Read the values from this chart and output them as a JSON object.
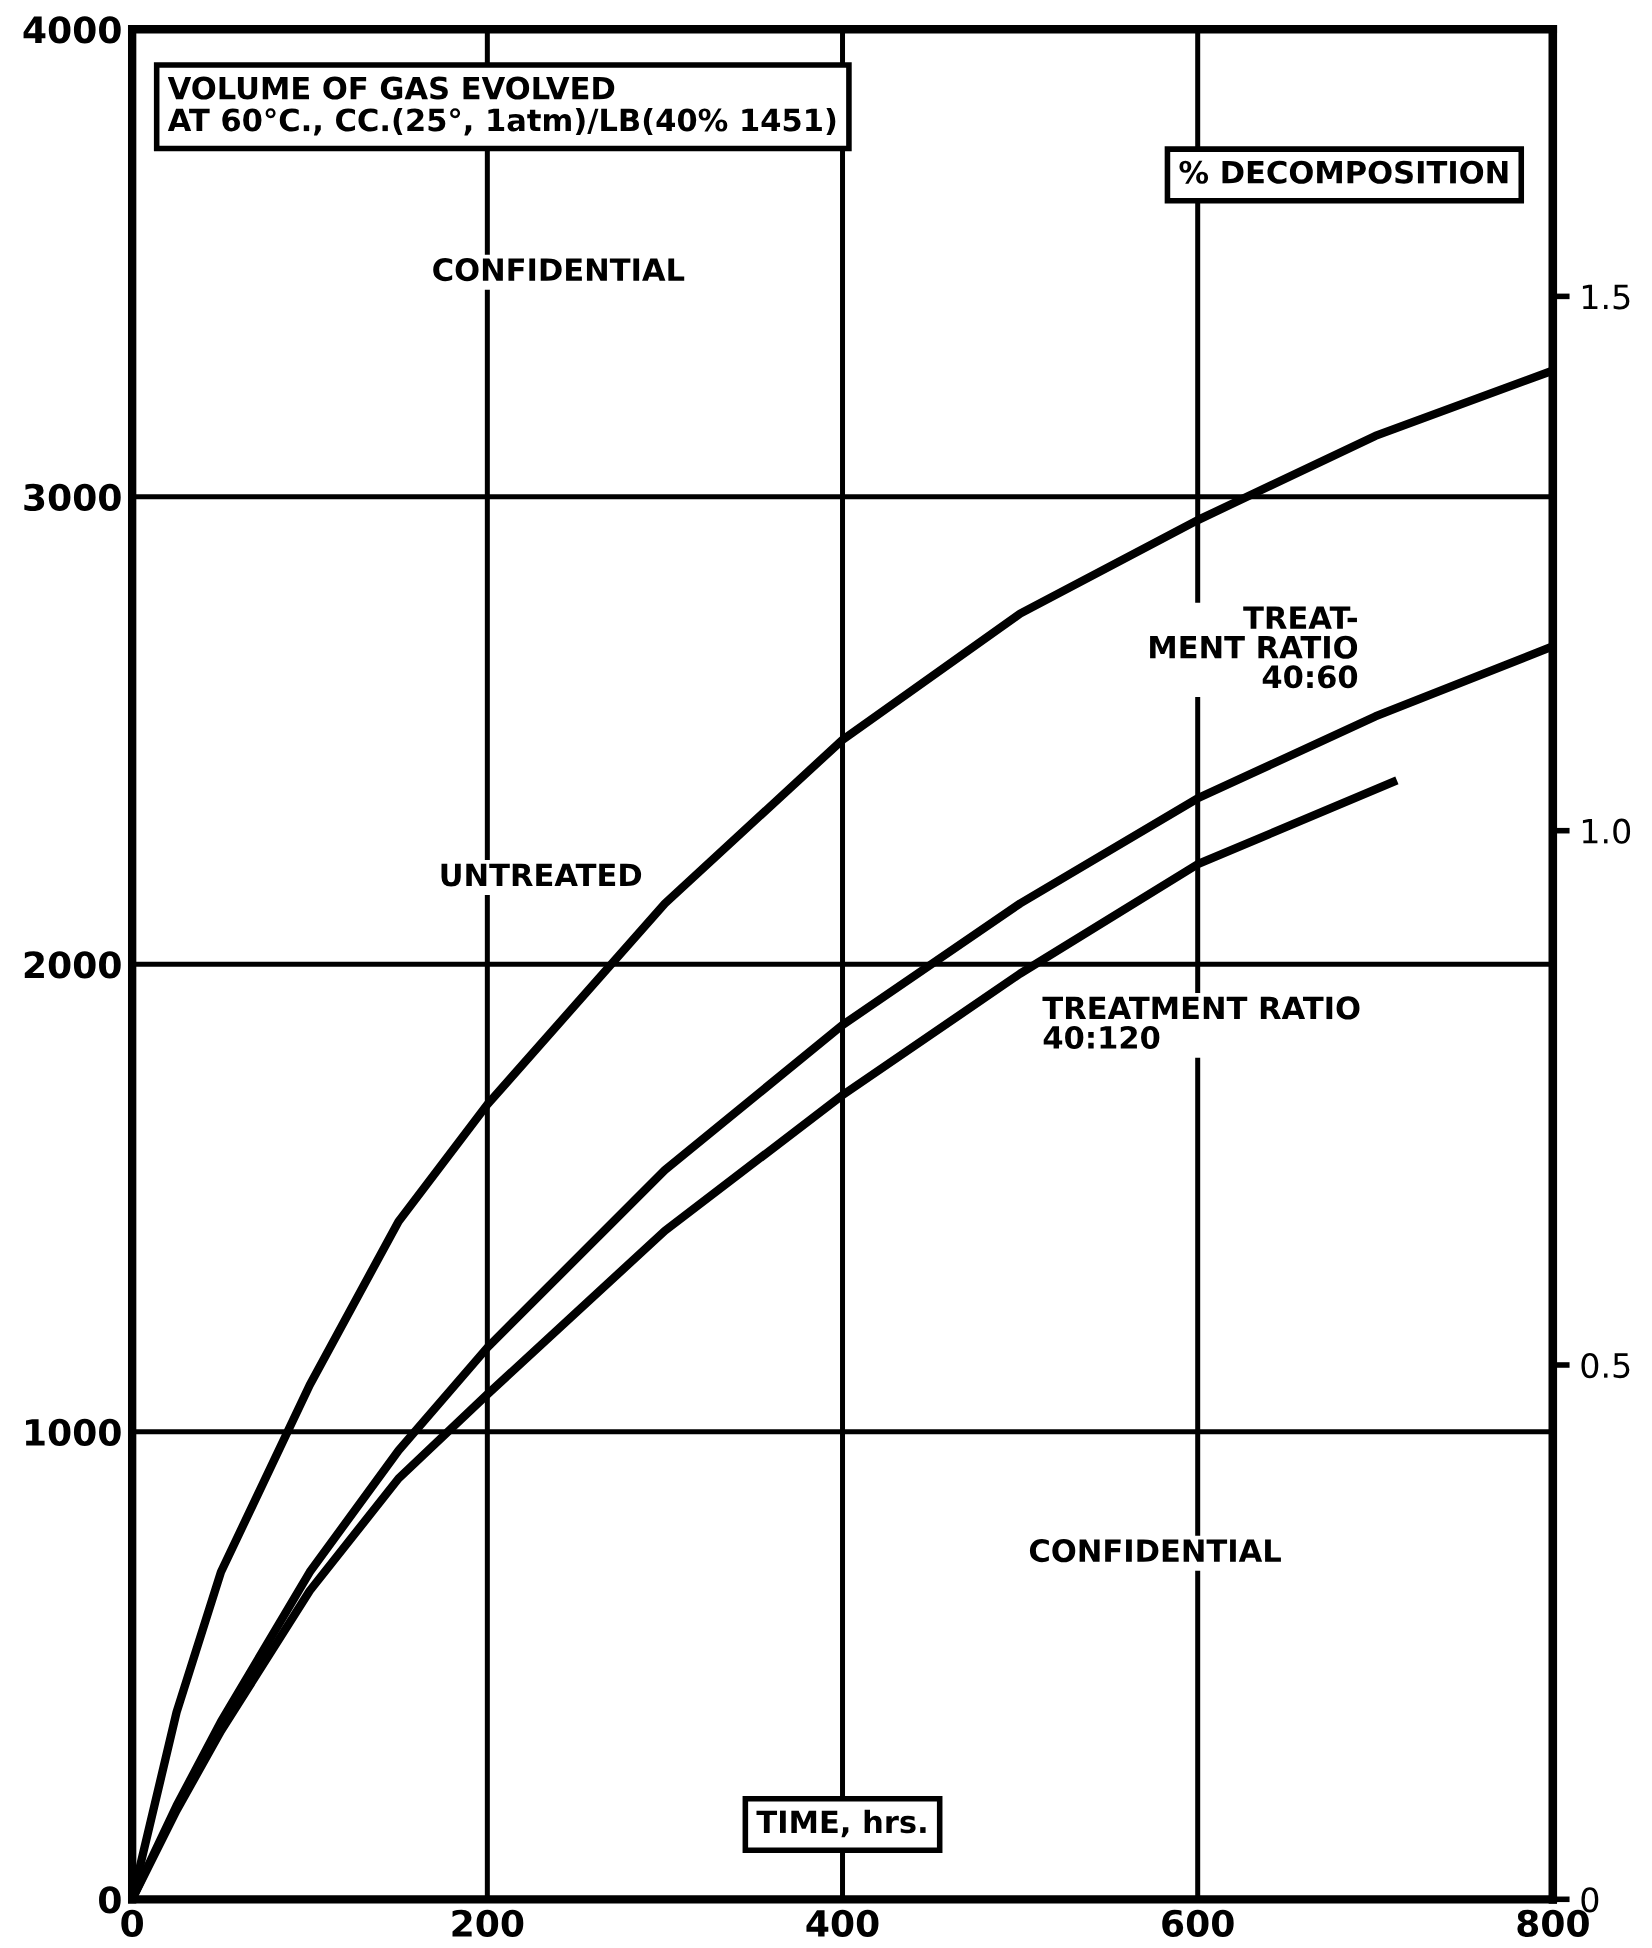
{
  "chart_data": {
    "type": "line",
    "title": "VOLUME OF GAS EVOLVED\nAT 60°C., CC.(25°, 1atm)/LB(40% 1451)",
    "xlabel": "TIME, hrs.",
    "y2label": "% DECOMPOSITION",
    "x": [
      0,
      25,
      50,
      100,
      150,
      200,
      300,
      400,
      500,
      600,
      700,
      800
    ],
    "series": [
      {
        "name": "UNTREATED",
        "color": "#000000",
        "values": [
          0,
          400,
          700,
          1100,
          1450,
          1700,
          2130,
          2480,
          2750,
          2950,
          3130,
          3270
        ]
      },
      {
        "name": "TREAT-\nMENT RATIO\n40:60",
        "color": "#000000",
        "values": [
          0,
          200,
          380,
          700,
          960,
          1180,
          1560,
          1870,
          2130,
          2355,
          2530,
          2680
        ]
      },
      {
        "name": "TREATMENT RATIO\n40:120",
        "color": "#000000",
        "x": [
          0,
          25,
          50,
          100,
          150,
          200,
          300,
          400,
          500,
          600,
          710
        ],
        "values": [
          0,
          190,
          360,
          660,
          900,
          1080,
          1430,
          1720,
          1980,
          2214,
          2390
        ]
      }
    ],
    "xlim": [
      0,
      800
    ],
    "xticks": [
      0,
      200,
      400,
      600,
      800
    ],
    "ylim": [
      0,
      4000
    ],
    "yticks": [
      0,
      1000,
      2000,
      3000,
      4000
    ],
    "y2lim": [
      0,
      1.75
    ],
    "y2ticks": [
      0,
      0.5,
      {
        "value": 1.0,
        "label": "1.0"
      },
      1.5
    ],
    "grid": true,
    "legend": false,
    "marker": "none",
    "line_style": "solid",
    "annotations": [
      "CONFIDENTIAL",
      "CONFIDENTIAL"
    ]
  }
}
